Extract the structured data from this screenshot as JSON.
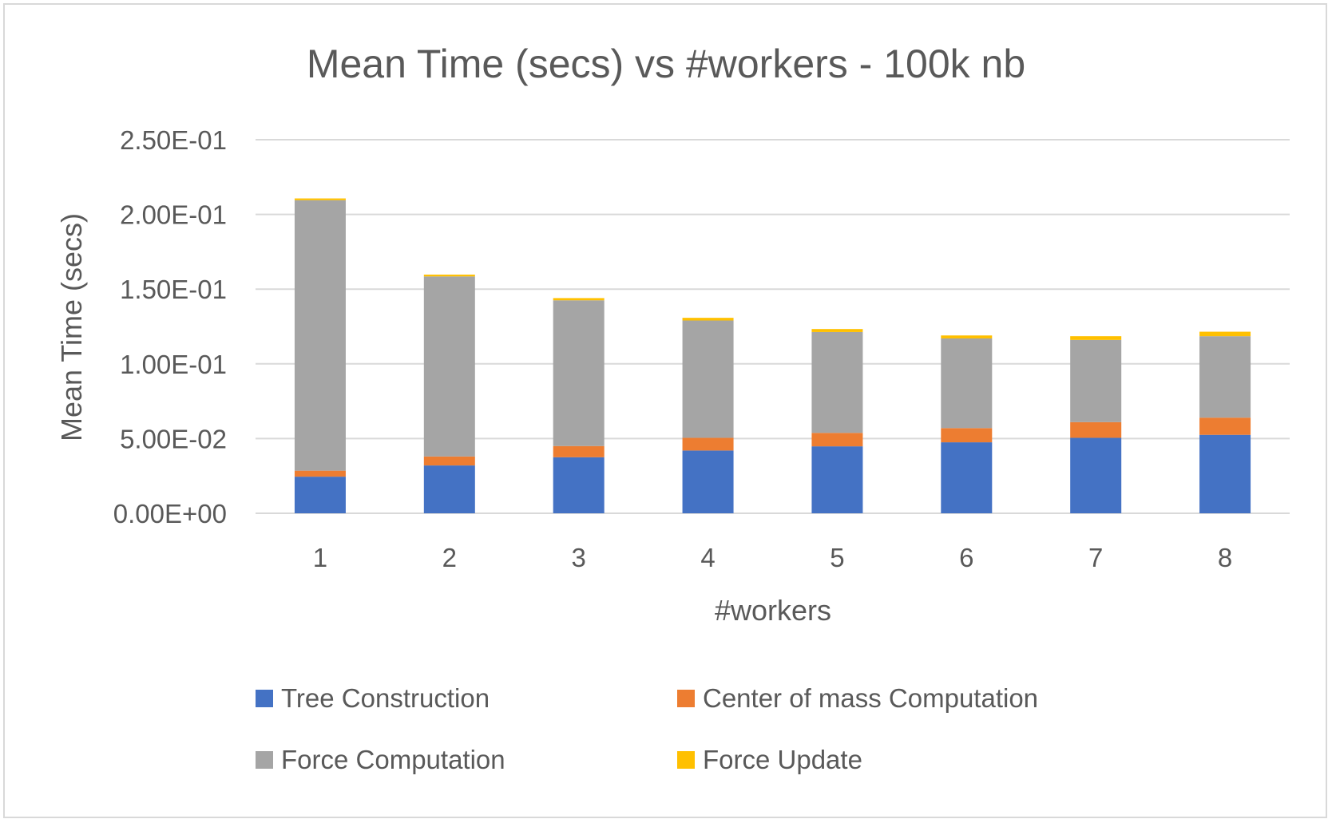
{
  "chart_data": {
    "type": "bar",
    "stacked": true,
    "title": "Mean Time (secs) vs #workers - 100k nb",
    "xlabel": "#workers",
    "ylabel": "Mean Time (secs)",
    "categories": [
      "1",
      "2",
      "3",
      "4",
      "5",
      "6",
      "7",
      "8"
    ],
    "ylim": [
      0,
      0.25
    ],
    "yticks": [
      0,
      0.05,
      0.1,
      0.15,
      0.2,
      0.25
    ],
    "ytick_labels": [
      "0.00E+00",
      "5.00E-02",
      "1.00E-01",
      "1.50E-01",
      "2.00E-01",
      "2.50E-01"
    ],
    "grid": "horizontal",
    "legend_position": "bottom",
    "series": [
      {
        "name": "Tree Construction",
        "color": "#4472C4",
        "values": [
          0.0245,
          0.032,
          0.0375,
          0.042,
          0.0448,
          0.0475,
          0.0505,
          0.0525
        ]
      },
      {
        "name": "Center of mass Computation",
        "color": "#ED7D31",
        "values": [
          0.004,
          0.006,
          0.0075,
          0.0085,
          0.009,
          0.0095,
          0.0105,
          0.0115
        ]
      },
      {
        "name": "Force Computation",
        "color": "#A5A5A5",
        "values": [
          0.181,
          0.1205,
          0.0975,
          0.0785,
          0.0675,
          0.06,
          0.055,
          0.0545
        ]
      },
      {
        "name": "Force Update",
        "color": "#FFC000",
        "values": [
          0.0012,
          0.0012,
          0.0015,
          0.0018,
          0.002,
          0.002,
          0.0025,
          0.003
        ]
      }
    ]
  }
}
